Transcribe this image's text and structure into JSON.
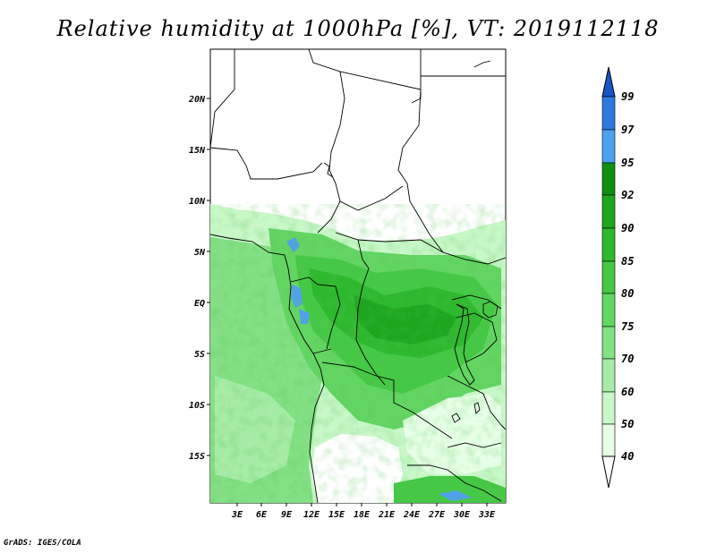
{
  "title": "Relative humidity at 1000hPa [%], VT: 2019112118",
  "credit": "GrADS: IGES/COLA",
  "map": {
    "lon_range": [
      0,
      35
    ],
    "lat_range": [
      -20,
      25
    ],
    "lat_ticks": [
      "20N",
      "15N",
      "10N",
      "5N",
      "EQ",
      "5S",
      "10S",
      "15S"
    ],
    "lon_ticks": [
      "3E",
      "6E",
      "9E",
      "12E",
      "15E",
      "18E",
      "21E",
      "24E",
      "27E",
      "30E",
      "33E"
    ]
  },
  "colorbar": {
    "levels": [
      "40",
      "50",
      "60",
      "70",
      "75",
      "80",
      "85",
      "90",
      "92",
      "95",
      "97",
      "99"
    ],
    "colors": [
      "#ffffff",
      "#e6ffe6",
      "#c8f7c8",
      "#a6eca6",
      "#84e084",
      "#63d563",
      "#45c845",
      "#2eb82e",
      "#1ea61e",
      "#0f8f0f",
      "#4fa0ee",
      "#2e78e0",
      "#1a55c8"
    ]
  }
}
